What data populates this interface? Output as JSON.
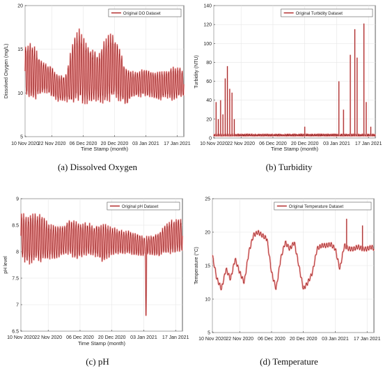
{
  "colors": {
    "series": "#8b1010",
    "envelope": "#f4a6a6",
    "axis": "#333333",
    "grid": "#e6e6e6"
  },
  "chart_data": [
    {
      "type": "line",
      "caption": "(a) Dissolved Oxygen",
      "xlabel": "Time Stamp (month)",
      "ylabel": "Dissolved Oxygen (mg/L)",
      "ylim": [
        5,
        20
      ],
      "yticks": [
        "5",
        "10",
        "15",
        "20"
      ],
      "yticks_values": [
        5,
        10,
        15,
        20
      ],
      "xlim": [
        "2020-11-10",
        "2021-01-20"
      ],
      "xticks": [
        "10 Nov 2020",
        "22 Nov 2020",
        "06 Dec 2020",
        "20 Dec 2020",
        "03 Jan 2021",
        "17 Jan 2021"
      ],
      "xticks_dates": [
        "2020-11-10",
        "2020-11-22",
        "2020-12-06",
        "2020-12-20",
        "2021-01-03",
        "2021-01-17"
      ],
      "grid": true,
      "legend_position": "top-right",
      "series": [
        {
          "name": "Original DO Dataset",
          "x": [
            "2020-11-10",
            "2020-11-13",
            "2020-11-16",
            "2020-11-19",
            "2020-11-22",
            "2020-11-25",
            "2020-11-28",
            "2020-12-01",
            "2020-12-04",
            "2020-12-07",
            "2020-12-10",
            "2020-12-13",
            "2020-12-16",
            "2020-12-19",
            "2020-12-22",
            "2020-12-25",
            "2020-12-28",
            "2020-12-31",
            "2021-01-03",
            "2021-01-06",
            "2021-01-09",
            "2021-01-12",
            "2021-01-15",
            "2021-01-18",
            "2021-01-20"
          ],
          "min": [
            9.5,
            9.0,
            9.5,
            10.0,
            9.5,
            9.0,
            9.0,
            8.5,
            9.0,
            8.5,
            9.0,
            9.0,
            8.5,
            9.0,
            9.0,
            8.5,
            9.5,
            9.5,
            9.5,
            9.5,
            9.0,
            9.5,
            9.0,
            9.5,
            9.5
          ],
          "max": [
            15.5,
            16.0,
            14.5,
            13.5,
            13.0,
            12.0,
            12.0,
            15.5,
            17.5,
            16.0,
            15.0,
            14.5,
            16.5,
            17.0,
            15.5,
            13.0,
            12.5,
            12.5,
            13.0,
            12.5,
            12.5,
            12.5,
            13.0,
            13.0,
            12.5
          ]
        }
      ]
    },
    {
      "type": "line",
      "caption": "(b) Turbidity",
      "xlabel": "Time Stamp (month)",
      "ylabel": "Turbidity (NTU)",
      "ylim": [
        0,
        140
      ],
      "yticks": [
        "0",
        "20",
        "40",
        "60",
        "80",
        "100",
        "120",
        "140"
      ],
      "yticks_values": [
        0,
        20,
        40,
        60,
        80,
        100,
        120,
        140
      ],
      "xlim": [
        "2020-11-10",
        "2021-01-20"
      ],
      "xticks": [
        "10 Nov 2020",
        "22 Nov 2020",
        "06 Dec 2020",
        "20 Dec 2020",
        "03 Jan 2021",
        "17 Jan 2021"
      ],
      "xticks_dates": [
        "2020-11-10",
        "2020-11-22",
        "2020-12-06",
        "2020-12-20",
        "2021-01-03",
        "2021-01-17"
      ],
      "grid": true,
      "legend_position": "top-right",
      "series": [
        {
          "name": "Original Turbidity Dataset",
          "baseline": 2,
          "spikes": [
            {
              "x": "2020-11-11",
              "y": 38
            },
            {
              "x": "2020-11-12",
              "y": 20
            },
            {
              "x": "2020-11-13",
              "y": 40
            },
            {
              "x": "2020-11-14",
              "y": 25
            },
            {
              "x": "2020-11-15",
              "y": 63
            },
            {
              "x": "2020-11-16",
              "y": 76
            },
            {
              "x": "2020-11-17",
              "y": 52
            },
            {
              "x": "2020-11-18",
              "y": 48
            },
            {
              "x": "2020-11-19",
              "y": 20
            },
            {
              "x": "2020-12-20",
              "y": 12
            },
            {
              "x": "2021-01-04",
              "y": 60
            },
            {
              "x": "2021-01-06",
              "y": 30
            },
            {
              "x": "2021-01-09",
              "y": 88
            },
            {
              "x": "2021-01-11",
              "y": 115
            },
            {
              "x": "2021-01-12",
              "y": 85
            },
            {
              "x": "2021-01-15",
              "y": 121
            },
            {
              "x": "2021-01-16",
              "y": 38
            },
            {
              "x": "2021-01-18",
              "y": 12
            }
          ]
        }
      ]
    },
    {
      "type": "line",
      "caption": "(c) pH",
      "xlabel": "Time Stamp (month)",
      "ylabel": "pH level",
      "ylim": [
        6.5,
        9
      ],
      "yticks": [
        "6.5",
        "7",
        "7.5",
        "8",
        "8.5",
        "9"
      ],
      "yticks_values": [
        6.5,
        7,
        7.5,
        8,
        8.5,
        9
      ],
      "xlim": [
        "2020-11-10",
        "2021-01-20"
      ],
      "xticks": [
        "10 Nov 2020",
        "22 Nov 2020",
        "06 Dec 2020",
        "20 Dec 2020",
        "03 Jan 2021",
        "17 Jan 2021"
      ],
      "xticks_dates": [
        "2020-11-10",
        "2020-11-22",
        "2020-12-06",
        "2020-12-20",
        "2021-01-03",
        "2021-01-17"
      ],
      "grid": true,
      "legend_position": "top-right",
      "series": [
        {
          "name": "Original pH Dataset",
          "x": [
            "2020-11-10",
            "2020-11-13",
            "2020-11-16",
            "2020-11-19",
            "2020-11-22",
            "2020-11-25",
            "2020-11-28",
            "2020-12-01",
            "2020-12-04",
            "2020-12-07",
            "2020-12-10",
            "2020-12-13",
            "2020-12-16",
            "2020-12-19",
            "2020-12-22",
            "2020-12-25",
            "2020-12-28",
            "2020-12-31",
            "2021-01-03",
            "2021-01-06",
            "2021-01-09",
            "2021-01-12",
            "2021-01-15",
            "2021-01-18",
            "2021-01-20"
          ],
          "min": [
            7.85,
            7.75,
            7.8,
            7.8,
            7.85,
            7.85,
            7.9,
            7.95,
            7.85,
            7.9,
            7.95,
            7.9,
            7.75,
            7.9,
            7.95,
            7.95,
            7.95,
            7.9,
            7.9,
            7.95,
            7.9,
            7.95,
            7.95,
            8.0,
            8.0
          ],
          "max": [
            8.75,
            8.7,
            8.75,
            8.7,
            8.55,
            8.5,
            8.5,
            8.6,
            8.6,
            8.55,
            8.55,
            8.5,
            8.55,
            8.5,
            8.45,
            8.4,
            8.4,
            8.35,
            8.3,
            8.3,
            8.35,
            8.5,
            8.6,
            8.65,
            8.6
          ],
          "dip": {
            "x": "2021-01-04",
            "y": 6.65
          }
        }
      ]
    },
    {
      "type": "line",
      "caption": "(d) Temperature",
      "xlabel": "",
      "ylabel": "Temperature (°C)",
      "ylim": [
        5,
        25
      ],
      "yticks": [
        "5",
        "10",
        "15",
        "20",
        "25"
      ],
      "yticks_values": [
        5,
        10,
        15,
        20,
        25
      ],
      "xlim": [
        "2020-11-10",
        "2021-01-20"
      ],
      "xticks": [
        "10 Nov 2020",
        "22 Nov 2020",
        "06 Dec 2020",
        "20 Dec 2020",
        "03 Jan 2021",
        "17 Jan 2021"
      ],
      "xticks_dates": [
        "2020-11-10",
        "2020-11-22",
        "2020-12-06",
        "2020-12-20",
        "2021-01-03",
        "2021-01-17"
      ],
      "grid": true,
      "legend_position": "top-right",
      "series": [
        {
          "name": "Original Temperature Dataset",
          "x": [
            "2020-11-10",
            "2020-11-12",
            "2020-11-14",
            "2020-11-16",
            "2020-11-18",
            "2020-11-20",
            "2020-11-22",
            "2020-11-24",
            "2020-11-26",
            "2020-11-28",
            "2020-11-30",
            "2020-12-02",
            "2020-12-04",
            "2020-12-06",
            "2020-12-08",
            "2020-12-10",
            "2020-12-12",
            "2020-12-14",
            "2020-12-16",
            "2020-12-18",
            "2020-12-20",
            "2020-12-22",
            "2020-12-24",
            "2020-12-26",
            "2020-12-28",
            "2020-12-30",
            "2021-01-01",
            "2021-01-03",
            "2021-01-05",
            "2021-01-07",
            "2021-01-09",
            "2021-01-11",
            "2021-01-13",
            "2021-01-15",
            "2021-01-17",
            "2021-01-19",
            "2021-01-20"
          ],
          "y": [
            16.5,
            13.0,
            11.5,
            14.5,
            13.0,
            16.0,
            14.0,
            12.5,
            17.0,
            19.5,
            20.0,
            19.5,
            19.0,
            14.0,
            11.5,
            16.0,
            18.5,
            17.5,
            18.5,
            15.0,
            11.5,
            12.5,
            14.0,
            17.5,
            18.0,
            18.0,
            18.2,
            17.5,
            14.5,
            18.0,
            17.5,
            17.5,
            17.8,
            17.5,
            17.5,
            17.8,
            17.5
          ],
          "spikes": [
            {
              "x": "2021-01-08",
              "y": 22.0
            },
            {
              "x": "2021-01-15",
              "y": 21.0
            }
          ]
        }
      ]
    }
  ]
}
